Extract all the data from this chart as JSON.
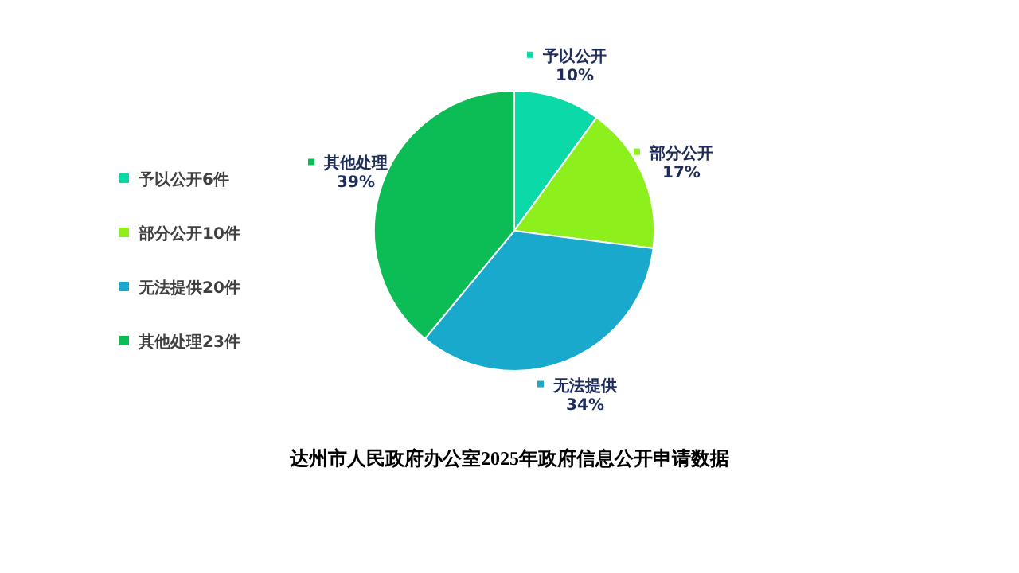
{
  "chart_data": {
    "type": "pie",
    "title": "达州市人民政府办公室2025年政府信息公开申请数据",
    "categories": [
      "予以公开6件",
      "部分公开10件",
      "无法提供20件",
      "其他处理23件"
    ],
    "values": [
      10,
      17,
      34,
      39
    ],
    "value_labels": [
      "10%",
      "17%",
      "34%",
      "39%"
    ],
    "annotations": [
      "予以公开",
      "部分公开",
      "无法提供",
      "其他处理"
    ],
    "colors": [
      "#0bd9a8",
      "#8def1b",
      "#19a9cc",
      "#0cbd55"
    ],
    "legend": "left"
  }
}
